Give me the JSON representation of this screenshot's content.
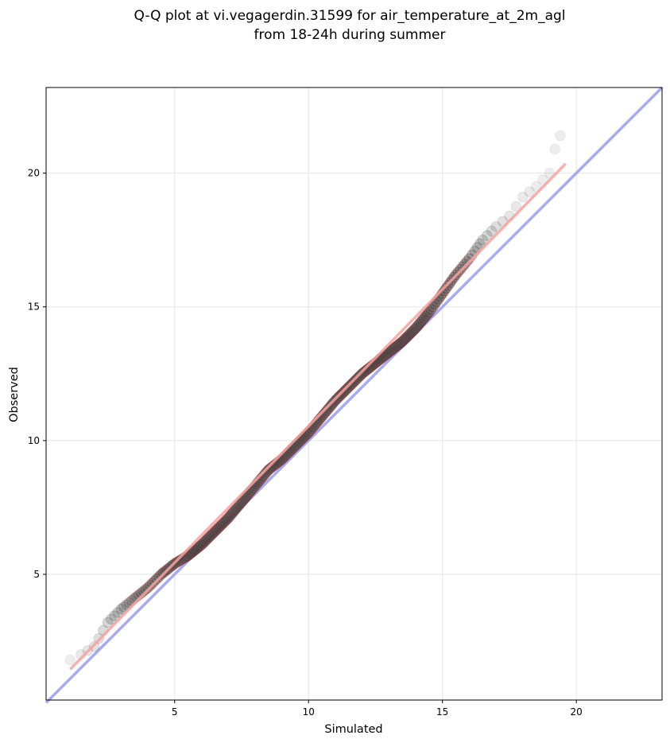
{
  "chart_data": {
    "type": "scatter",
    "title_lines": [
      "Q-Q plot at vi.vegagerdin.31599 for air_temperature_at_2m_agl",
      "from 18-24h during summer"
    ],
    "xlabel": "Simulated",
    "ylabel": "Observed",
    "xlim": [
      0.2,
      23.2
    ],
    "ylim": [
      0.3,
      23.2
    ],
    "xticks": [
      5,
      10,
      15,
      20
    ],
    "yticks": [
      5,
      10,
      15,
      20
    ],
    "grid": true,
    "quantile_curve": {
      "x": [
        1.1,
        1.5,
        2.0,
        2.5,
        3.0,
        3.5,
        4.0,
        4.5,
        5.0,
        5.5,
        6.0,
        6.5,
        7.0,
        7.5,
        8.0,
        8.5,
        9.0,
        9.5,
        10.0,
        10.5,
        11.0,
        11.5,
        12.0,
        12.5,
        13.0,
        13.5,
        14.0,
        14.5,
        15.0,
        15.5,
        16.0,
        16.5,
        17.0,
        17.5,
        18.0,
        18.5,
        19.0,
        19.2,
        19.4,
        19.6
      ],
      "y": [
        1.8,
        2.0,
        2.3,
        3.2,
        3.7,
        4.1,
        4.5,
        5.0,
        5.4,
        5.7,
        6.1,
        6.6,
        7.1,
        7.7,
        8.3,
        8.9,
        9.3,
        9.8,
        10.3,
        10.9,
        11.5,
        12.0,
        12.5,
        12.9,
        13.3,
        13.7,
        14.2,
        14.8,
        15.5,
        16.2,
        16.8,
        17.5,
        18.0,
        18.4,
        19.1,
        19.5,
        20.0,
        20.9,
        21.4,
        22.1
      ],
      "density": [
        0.1,
        0.15,
        0.25,
        0.4,
        0.55,
        0.65,
        0.75,
        0.85,
        0.9,
        0.95,
        1.0,
        1.0,
        1.0,
        1.0,
        1.0,
        1.0,
        1.0,
        1.0,
        1.0,
        1.0,
        1.0,
        1.0,
        1.0,
        1.0,
        1.0,
        1.0,
        1.0,
        0.95,
        0.9,
        0.85,
        0.7,
        0.45,
        0.3,
        0.2,
        0.15,
        0.12,
        0.1,
        0.1,
        0.1,
        0.1
      ]
    },
    "identity_line": {
      "x": [
        0.2,
        23.2
      ],
      "y": [
        0.2,
        23.2
      ],
      "color": "#aaaaee"
    },
    "fit_line": {
      "x": [
        1.1,
        19.6
      ],
      "y": [
        1.45,
        20.35
      ],
      "color": "#f4a3a0"
    },
    "point_color": "#444444",
    "dense_edge_color": "#7a1010"
  }
}
